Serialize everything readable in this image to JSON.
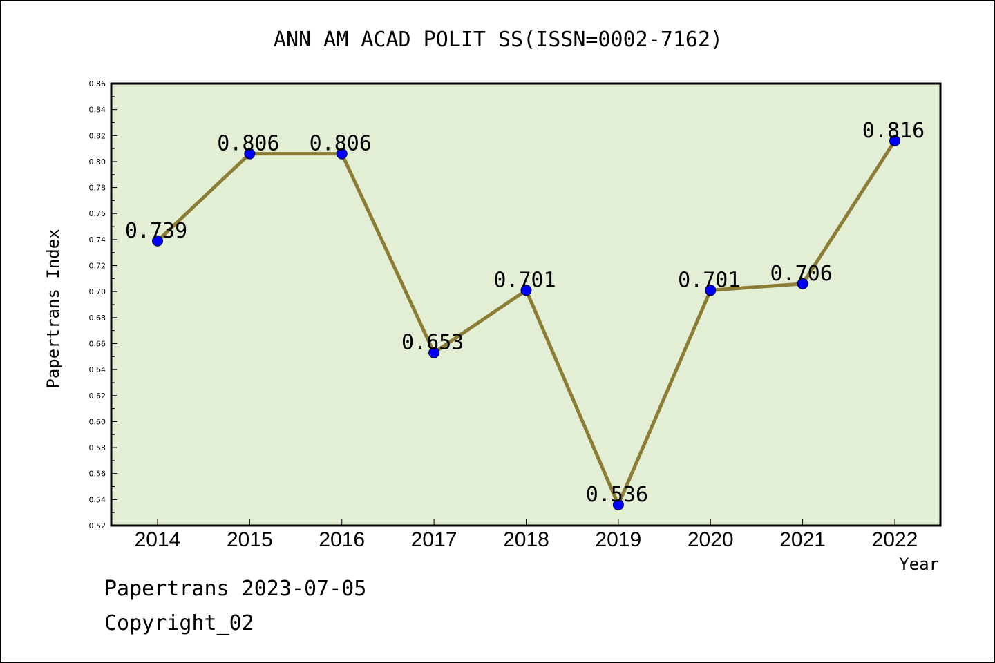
{
  "chart_data": {
    "type": "line",
    "title": "ANN AM ACAD POLIT SS(ISSN=0002-7162)",
    "xlabel": "Year",
    "ylabel": "Papertrans Index",
    "categories": [
      "2014",
      "2015",
      "2016",
      "2017",
      "2018",
      "2019",
      "2020",
      "2021",
      "2022"
    ],
    "values": [
      0.739,
      0.806,
      0.806,
      0.653,
      0.701,
      0.536,
      0.701,
      0.706,
      0.816
    ],
    "data_labels": [
      "0.739",
      "0.806",
      "0.806",
      "0.653",
      "0.701",
      "0.536",
      "0.701",
      "0.706",
      "0.816"
    ],
    "ylim": [
      0.52,
      0.86
    ],
    "yticks": [
      "0.52",
      "0.54",
      "0.56",
      "0.58",
      "0.60",
      "0.62",
      "0.64",
      "0.66",
      "0.68",
      "0.70",
      "0.72",
      "0.74",
      "0.76",
      "0.78",
      "0.80",
      "0.82",
      "0.84",
      "0.86"
    ],
    "grid": false,
    "colors": {
      "plot_background": "#e2efd5",
      "line": "#8b7d35",
      "marker": "#0000ff"
    }
  },
  "footer": {
    "line1": "Papertrans 2023-07-05",
    "line2": "Copyright_02"
  }
}
